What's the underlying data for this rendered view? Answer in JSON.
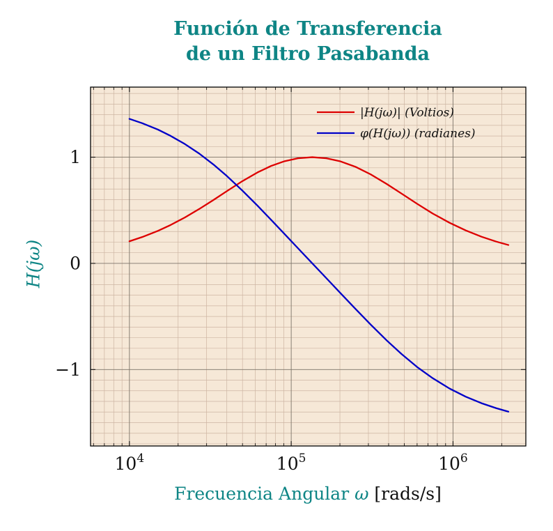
{
  "accent_color": "#0e8585",
  "text_color": "#111111",
  "title": {
    "line1": "Función de Transferencia",
    "line2": "de un Filtro Pasabanda"
  },
  "xlabel": {
    "text": "Frecuencia Angular ",
    "symbol": "ω",
    "unit": " [rads/s]"
  },
  "ylabel": "H(jω)",
  "chart_data": {
    "type": "line",
    "title": "Función de Transferencia de un Filtro Pasabanda",
    "xlabel": "Frecuencia Angular ω [rads/s]",
    "ylabel": "H(jω)",
    "x_scale": "log",
    "xlim": [
      5750,
      2820000
    ],
    "ylim": [
      -1.72,
      1.66
    ],
    "x_ticks": [
      {
        "value": 10000,
        "label": "10^4"
      },
      {
        "value": 100000,
        "label": "10^5"
      },
      {
        "value": 1000000,
        "label": "10^6"
      }
    ],
    "y_ticks": [
      -1,
      0,
      1
    ],
    "grid": "both-with-minor",
    "legend_position": "top-right-inside",
    "plot_bg": "#f6e8d7",
    "grid_minor_color": "#cdb5a3",
    "grid_major_color": "#7c7468",
    "x": [
      10000,
      12000,
      15000,
      18000,
      22000,
      27000,
      33000,
      40000,
      50000,
      62000,
      75000,
      90000,
      110000,
      135000,
      165000,
      200000,
      250000,
      310000,
      390000,
      480000,
      600000,
      750000,
      950000,
      1200000,
      1500000,
      1850000,
      2200000
    ],
    "series": [
      {
        "name": "|H(jω)| (Voltios)",
        "color": "#dd0000",
        "values": [
          0.208,
          0.248,
          0.306,
          0.362,
          0.432,
          0.512,
          0.596,
          0.68,
          0.775,
          0.857,
          0.917,
          0.96,
          0.99,
          1.0,
          0.99,
          0.962,
          0.909,
          0.838,
          0.747,
          0.658,
          0.561,
          0.469,
          0.383,
          0.31,
          0.251,
          0.205,
          0.173
        ]
      },
      {
        "name": "φ(H(jω)) (radianes)",
        "color": "#0000c8",
        "values": [
          1.361,
          1.32,
          1.26,
          1.2,
          1.124,
          1.034,
          0.932,
          0.823,
          0.684,
          0.542,
          0.411,
          0.284,
          0.143,
          0.0,
          -0.14,
          -0.275,
          -0.43,
          -0.577,
          -0.727,
          -0.853,
          -0.976,
          -1.082,
          -1.178,
          -1.256,
          -1.317,
          -1.364,
          -1.397
        ]
      }
    ]
  }
}
